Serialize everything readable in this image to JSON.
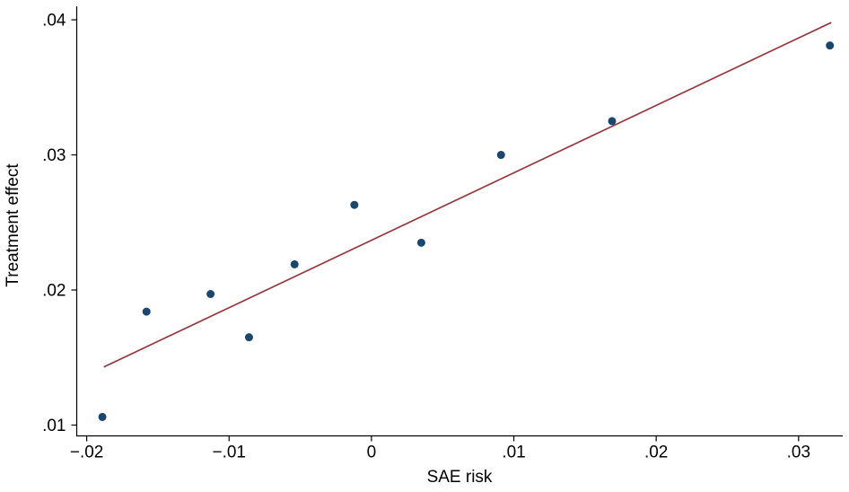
{
  "figure": {
    "background": "#ffffff"
  },
  "chart_data": {
    "type": "scatter",
    "title": "",
    "xlabel": "SAE risk",
    "ylabel": "Treatment effect",
    "xlim": [
      -0.0207,
      0.0331
    ],
    "ylim": [
      0.0092,
      0.041
    ],
    "grid": false,
    "legend": "none",
    "x_ticks": [
      {
        "value": -0.02,
        "label": "−.02"
      },
      {
        "value": -0.01,
        "label": "−.01"
      },
      {
        "value": 0,
        "label": "0"
      },
      {
        "value": 0.01,
        "label": ".01"
      },
      {
        "value": 0.02,
        "label": ".02"
      },
      {
        "value": 0.03,
        "label": ".03"
      }
    ],
    "y_ticks": [
      {
        "value": 0.01,
        "label": ".01"
      },
      {
        "value": 0.02,
        "label": ".02"
      },
      {
        "value": 0.03,
        "label": ".03"
      },
      {
        "value": 0.04,
        "label": ".04"
      }
    ],
    "points": [
      {
        "x": -0.0189,
        "y": 0.0106
      },
      {
        "x": -0.0158,
        "y": 0.0184
      },
      {
        "x": -0.0113,
        "y": 0.0197
      },
      {
        "x": -0.0086,
        "y": 0.0165
      },
      {
        "x": -0.0054,
        "y": 0.0219
      },
      {
        "x": -0.0012,
        "y": 0.0263
      },
      {
        "x": 0.0035,
        "y": 0.0235
      },
      {
        "x": 0.0091,
        "y": 0.03
      },
      {
        "x": 0.0169,
        "y": 0.0325
      },
      {
        "x": 0.0322,
        "y": 0.0381
      }
    ],
    "fit_line": {
      "x_start": -0.0188,
      "y_start": 0.0143,
      "x_end": 0.0323,
      "y_end": 0.0398
    },
    "colors": {
      "marker": "#1a476f",
      "fit_line": "#95393d",
      "axis": "#000000",
      "text": "#000000"
    },
    "marker_radius": 4.5
  }
}
